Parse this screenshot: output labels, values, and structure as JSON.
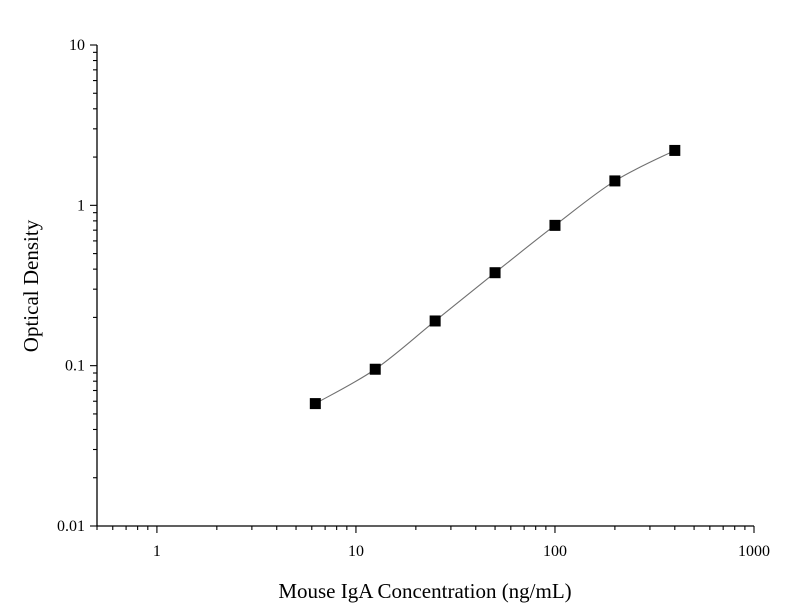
{
  "chart_data": {
    "type": "line",
    "xlabel": "Mouse IgA Concentration (ng/mL)",
    "ylabel": "Optical Density",
    "xscale": "log",
    "yscale": "log",
    "xlim": [
      0.5,
      1000
    ],
    "ylim": [
      0.01,
      10
    ],
    "x_ticks": [
      {
        "value": 1,
        "label": "1"
      },
      {
        "value": 10,
        "label": "10"
      },
      {
        "value": 100,
        "label": "100"
      },
      {
        "value": 1000,
        "label": "1000"
      }
    ],
    "y_ticks": [
      {
        "value": 0.01,
        "label": "0.01"
      },
      {
        "value": 0.1,
        "label": "0.1"
      },
      {
        "value": 1,
        "label": "1"
      },
      {
        "value": 10,
        "label": "10"
      }
    ],
    "grid": false,
    "legend": "none",
    "series": [
      {
        "marker": "square",
        "marker_color": "#000000",
        "line_color": "#707070",
        "points": [
          {
            "x": 6.25,
            "y": 0.058
          },
          {
            "x": 12.5,
            "y": 0.095
          },
          {
            "x": 25,
            "y": 0.19
          },
          {
            "x": 50,
            "y": 0.38
          },
          {
            "x": 100,
            "y": 0.75
          },
          {
            "x": 200,
            "y": 1.42
          },
          {
            "x": 400,
            "y": 2.2
          }
        ]
      }
    ]
  }
}
